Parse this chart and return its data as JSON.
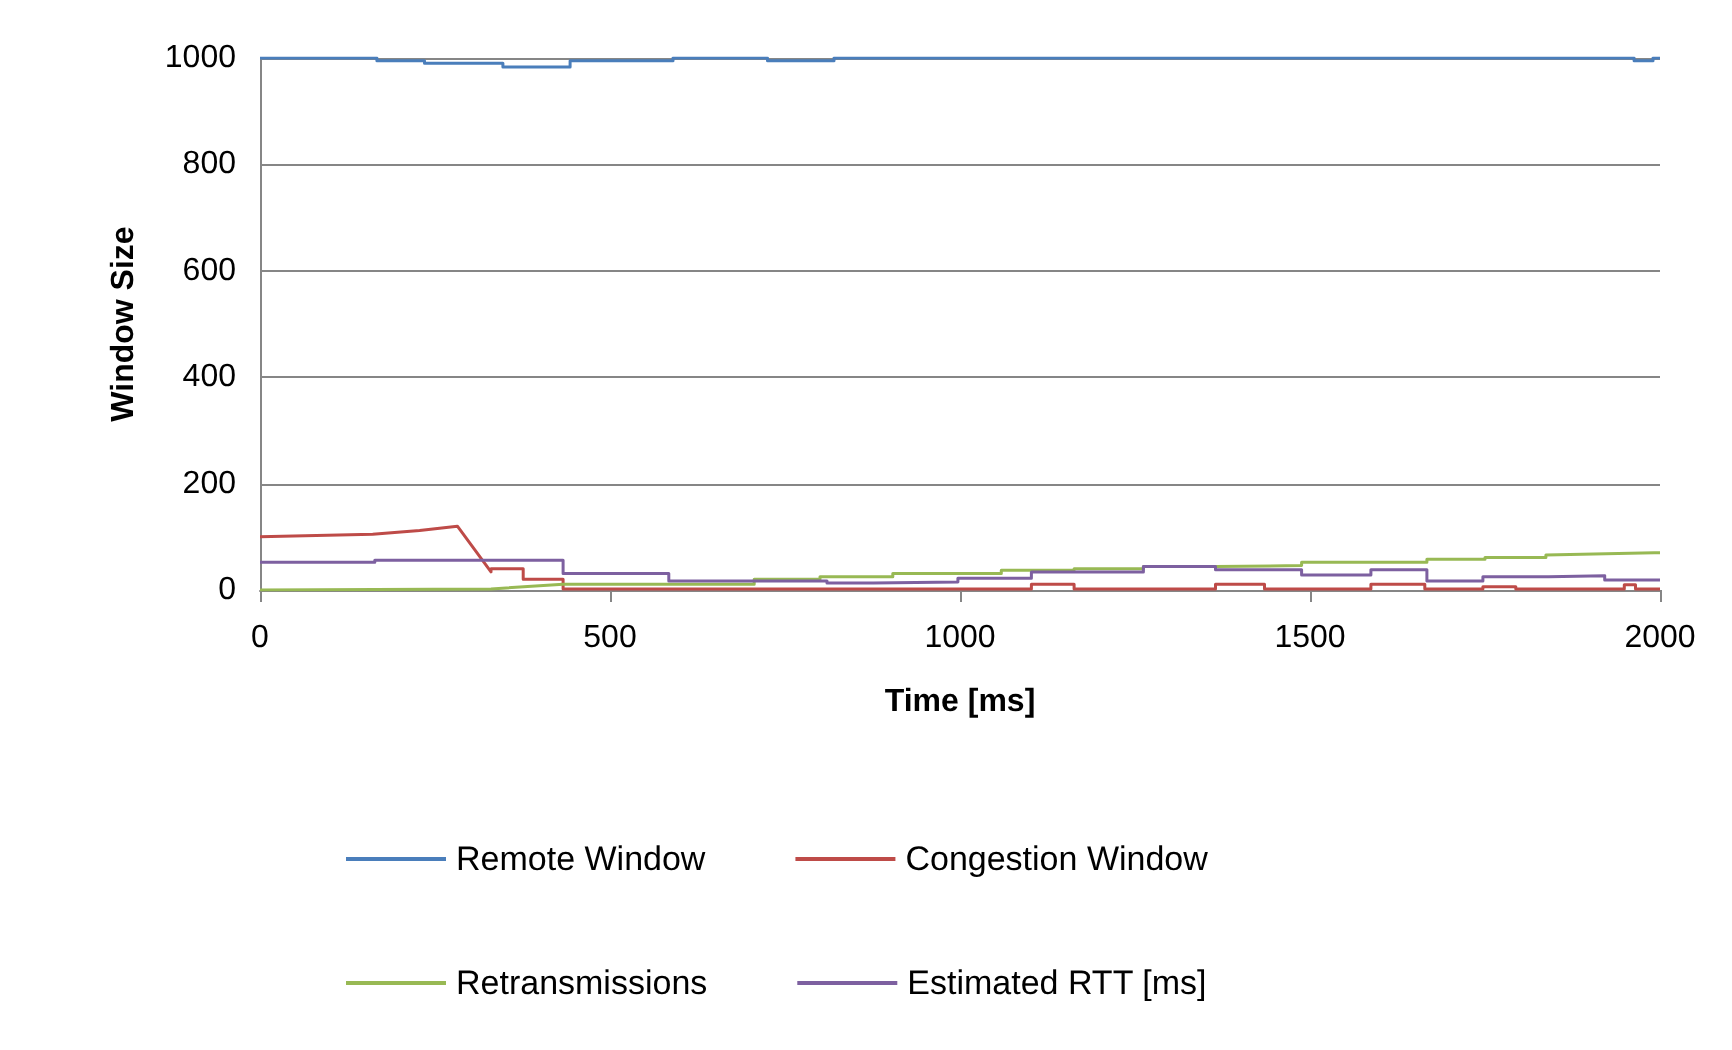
{
  "chart_data": {
    "type": "line",
    "xlabel": "Time [ms]",
    "ylabel": "Window Size",
    "xlim": [
      0,
      2000
    ],
    "xticks": [
      0,
      500,
      1000,
      1500,
      2000
    ],
    "ylim": [
      0,
      1000
    ],
    "yticks": [
      0,
      200,
      400,
      600,
      800,
      1000
    ],
    "grid": "y",
    "legend": "bottom",
    "marker": "none",
    "line_style": "solid",
    "series": [
      {
        "name": "Remote Window",
        "color": "#4a7ebb",
        "x": [
          0,
          167,
          167,
          235,
          235,
          347,
          347,
          443,
          443,
          590,
          590,
          725,
          725,
          820,
          820,
          1963,
          1963,
          1990,
          1990,
          2000
        ],
        "values": [
          1000,
          1000,
          995,
          995,
          990,
          990,
          983,
          983,
          995,
          995,
          1000,
          1000,
          995,
          995,
          1000,
          1000,
          995,
          995,
          1000,
          1000
        ]
      },
      {
        "name": "Congestion Window",
        "color": "#be4b48",
        "x": [
          0,
          161,
          228,
          282,
          330,
          330,
          376,
          376,
          433,
          433,
          1102,
          1102,
          1163,
          1163,
          1365,
          1365,
          1435,
          1435,
          1587,
          1587,
          1664,
          1664,
          1747,
          1747,
          1794,
          1794,
          1949,
          1949,
          1965,
          1965,
          2000
        ],
        "values": [
          100,
          105,
          112,
          120,
          34,
          40,
          40,
          20,
          20,
          2,
          2,
          11,
          11,
          2,
          2,
          11,
          11,
          2,
          2,
          11,
          11,
          2,
          2,
          6,
          6,
          2,
          2,
          10,
          10,
          2,
          2
        ]
      },
      {
        "name": "Retransmissions",
        "color": "#98b954",
        "x": [
          0,
          330,
          433,
          584,
          706,
          706,
          800,
          800,
          904,
          904,
          1059,
          1059,
          1163,
          1163,
          1262,
          1262,
          1365,
          1365,
          1488,
          1488,
          1667,
          1667,
          1750,
          1750,
          1837,
          1837,
          1992,
          2000
        ],
        "values": [
          0,
          2,
          11,
          11,
          11,
          20,
          20,
          25,
          25,
          31,
          31,
          37,
          37,
          40,
          40,
          44,
          44,
          46,
          46,
          52,
          52,
          58,
          58,
          61,
          61,
          66,
          70,
          70
        ]
      },
      {
        "name": "Estimated RTT [ms]",
        "color": "#7d60a0",
        "x": [
          0,
          164,
          164,
          433,
          433,
          584,
          584,
          810,
          810,
          876,
          876,
          997,
          997,
          1102,
          1102,
          1262,
          1262,
          1365,
          1365,
          1488,
          1488,
          1587,
          1587,
          1667,
          1667,
          1747,
          1747,
          1841,
          1841,
          1921,
          1921,
          2000
        ],
        "values": [
          52,
          52,
          56,
          56,
          31,
          31,
          17,
          17,
          13,
          13,
          15,
          15,
          22,
          22,
          34,
          34,
          44,
          44,
          38,
          38,
          28,
          28,
          38,
          38,
          17,
          17,
          25,
          25,
          27,
          27,
          19,
          19
        ]
      }
    ]
  }
}
